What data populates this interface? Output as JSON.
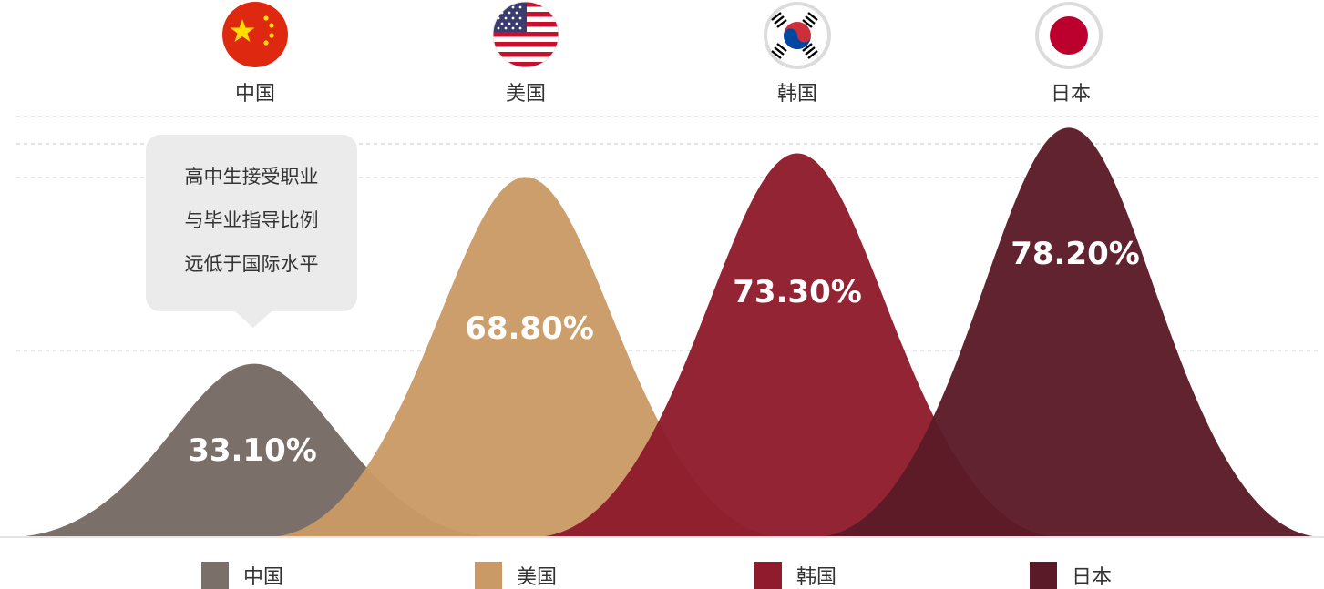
{
  "chart_data": {
    "type": "area",
    "categories": [
      "中国",
      "美国",
      "韩国",
      "日本"
    ],
    "values": [
      33.1,
      68.8,
      73.3,
      78.2
    ],
    "value_labels": [
      "33.10%",
      "68.80%",
      "73.30%",
      "78.20%"
    ],
    "colors": [
      "#7b6f6a",
      "#c99a66",
      "#8f1b2c",
      "#5b1a27"
    ],
    "ylim": [
      0,
      80
    ],
    "grid": true,
    "legend": "bottom",
    "legend_entries": [
      "中国",
      "美国",
      "韩国",
      "日本"
    ],
    "flags": [
      "china-flag-icon",
      "usa-flag-icon",
      "korea-flag-icon",
      "japan-flag-icon"
    ],
    "annotation": {
      "target": "中国",
      "lines": [
        "高中生接受职业",
        "与毕业指导比例",
        "远低于国际水平"
      ]
    }
  }
}
